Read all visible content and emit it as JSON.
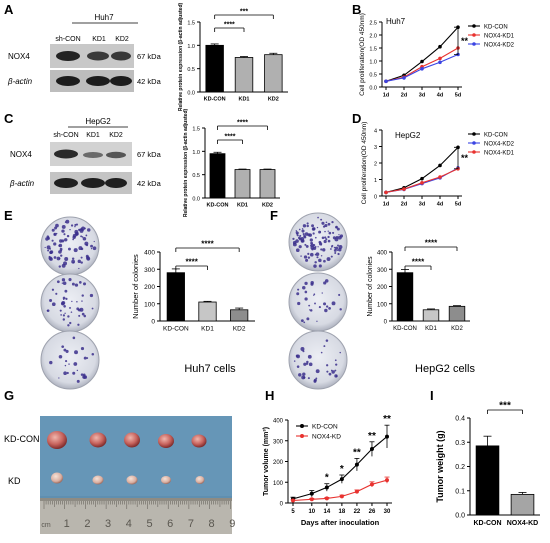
{
  "panels": {
    "A": {
      "letter": "A",
      "blot": {
        "cell": "Huh7",
        "lanes": [
          "sh-CON",
          "KD1",
          "KD2"
        ],
        "rows": [
          "NOX4",
          "β-actin"
        ],
        "sizes": [
          "67 kDa",
          "42 kDa"
        ]
      },
      "chart_data": {
        "type": "bar",
        "categories": [
          "KD-CON",
          "KD1",
          "KD2"
        ],
        "values": [
          1.0,
          0.74,
          0.8
        ],
        "errors": [
          0.03,
          0.02,
          0.03
        ],
        "ylabel": "Relative protein expression (β-actin adjusted)",
        "ylim": [
          0,
          1.5
        ],
        "yticks": [
          "0.0",
          "0.5",
          "1.0",
          "1.5"
        ],
        "sig": [
          "****",
          "***"
        ]
      }
    },
    "B": {
      "letter": "B",
      "chart_data": {
        "type": "line",
        "inner_title": "Huh7",
        "x": [
          "1d",
          "2d",
          "3d",
          "4d",
          "5d"
        ],
        "ylabel": "Cell proliferation(OD 450nm)",
        "ylim": [
          0,
          2.5
        ],
        "yticks": [
          "0.0",
          "0.5",
          "1.0",
          "1.5",
          "2.0",
          "2.5"
        ],
        "sig": "**",
        "series": [
          {
            "name": "KD-CON",
            "color": "#000000",
            "values": [
              0.22,
              0.45,
              0.98,
              1.55,
              2.3
            ]
          },
          {
            "name": "NOX4-KD1",
            "color": "#e8322f",
            "values": [
              0.22,
              0.38,
              0.78,
              1.1,
              1.5
            ]
          },
          {
            "name": "NOX4-KD2",
            "color": "#3b45e3",
            "values": [
              0.22,
              0.35,
              0.7,
              0.95,
              1.25
            ]
          }
        ]
      }
    },
    "C": {
      "letter": "C",
      "blot": {
        "cell": "HepG2",
        "lanes": [
          "sh-CON",
          "KD1",
          "KD2"
        ],
        "rows": [
          "NOX4",
          "β-actin"
        ],
        "sizes": [
          "67 kDa",
          "42 kDa"
        ]
      },
      "chart_data": {
        "type": "bar",
        "categories": [
          "KD-CON",
          "KD1",
          "KD2"
        ],
        "values": [
          0.95,
          0.61,
          0.61
        ],
        "errors": [
          0.03,
          0.01,
          0.01
        ],
        "ylabel": "Relative protein expression (β-actin adjusted)",
        "ylim": [
          0,
          1.5
        ],
        "yticks": [
          "0.0",
          "0.5",
          "1.0",
          "1.5"
        ],
        "sig": [
          "****",
          "****"
        ]
      }
    },
    "D": {
      "letter": "D",
      "chart_data": {
        "type": "line",
        "inner_title": "HepG2",
        "x": [
          "1d",
          "2d",
          "3d",
          "4d",
          "5d"
        ],
        "ylabel": "Cell proliferation(OD 450nm)",
        "ylim": [
          0,
          4
        ],
        "yticks": [
          "0",
          "1",
          "2",
          "3",
          "4"
        ],
        "sig": "**",
        "series": [
          {
            "name": "KD-CON",
            "color": "#000000",
            "values": [
              0.22,
              0.5,
              1.05,
              1.85,
              2.95
            ]
          },
          {
            "name": "NOX4-KD2",
            "color": "#3b45e3",
            "values": [
              0.22,
              0.4,
              0.75,
              1.1,
              1.7
            ]
          },
          {
            "name": "NOX4-KD1",
            "color": "#e8322f",
            "values": [
              0.22,
              0.42,
              0.8,
              1.15,
              1.65
            ]
          }
        ]
      }
    },
    "E": {
      "letter": "E",
      "caption": "Huh7 cells",
      "chart_data": {
        "type": "bar",
        "categories": [
          "KD-CON",
          "KD1",
          "KD2"
        ],
        "values": [
          280,
          110,
          65
        ],
        "errors": [
          22,
          4,
          10
        ],
        "ylabel": "Number of colonies",
        "ylim": [
          0,
          400
        ],
        "yticks": [
          "0",
          "100",
          "200",
          "300",
          "400"
        ],
        "sig": [
          "****",
          "****"
        ]
      }
    },
    "F": {
      "letter": "F",
      "caption": "HepG2 cells",
      "chart_data": {
        "type": "bar",
        "categories": [
          "KD-CON",
          "KD1",
          "KD2"
        ],
        "values": [
          280,
          65,
          85
        ],
        "errors": [
          18,
          5,
          4
        ],
        "ylabel": "Number of colonies",
        "ylim": [
          0,
          400
        ],
        "yticks": [
          "0",
          "100",
          "200",
          "300",
          "400"
        ],
        "sig": [
          "****",
          "****"
        ]
      }
    },
    "G": {
      "letter": "G",
      "rows": [
        "KD-CON",
        "KD"
      ],
      "ruler": [
        "cm",
        "1",
        "2",
        "3",
        "4",
        "5",
        "6",
        "7",
        "8",
        "9"
      ]
    },
    "H": {
      "letter": "H",
      "chart_data": {
        "type": "line",
        "x": [
          5,
          10,
          14,
          18,
          22,
          26,
          30
        ],
        "xlabel": "Days after inoculation",
        "ylabel": "Tumor volume (mm³)",
        "ylim": [
          0,
          400
        ],
        "yticks": [
          "0",
          "100",
          "200",
          "300",
          "400"
        ],
        "stars": [
          "",
          "",
          "*",
          "*",
          "**",
          "**",
          "**"
        ],
        "series": [
          {
            "name": "KD-CON",
            "color": "#000000",
            "values": [
              20,
              45,
              75,
              115,
              185,
              260,
              320
            ],
            "errors": [
              8,
              15,
              18,
              20,
              30,
              35,
              55
            ]
          },
          {
            "name": "NOX4-KD",
            "color": "#e8322f",
            "values": [
              12,
              18,
              22,
              32,
              55,
              90,
              110
            ],
            "errors": [
              3,
              4,
              5,
              6,
              8,
              12,
              15
            ]
          }
        ]
      }
    },
    "I": {
      "letter": "I",
      "chart_data": {
        "type": "bar",
        "categories": [
          "KD-CON",
          "NOX4-KD"
        ],
        "values": [
          0.285,
          0.085
        ],
        "errors": [
          0.04,
          0.008
        ],
        "ylabel": "Tumor weight (g)",
        "ylim": [
          0,
          0.4
        ],
        "yticks": [
          "0.0",
          "0.1",
          "0.2",
          "0.3",
          "0.4"
        ],
        "sig": "***"
      }
    }
  }
}
